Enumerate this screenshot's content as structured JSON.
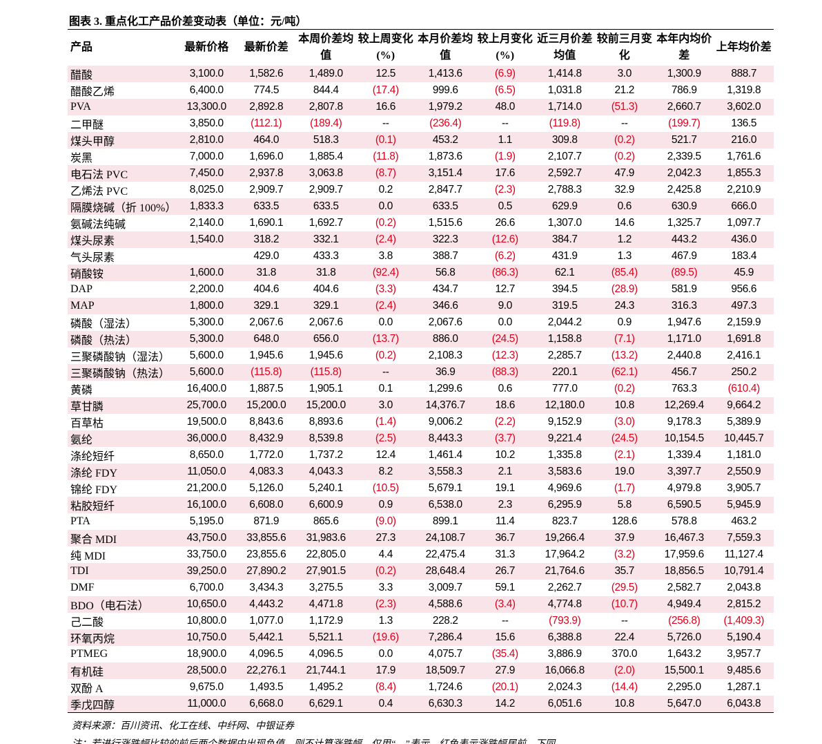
{
  "header": {
    "title": "图表 3. 重点化工产品价差变动表（单位：元/吨）"
  },
  "table": {
    "columns": [
      "产品",
      "最新价格",
      "最新价差",
      "本周价差均值",
      "较上周变化(%)",
      "本月价差均值",
      "较上月变化(%)",
      "近三月价差均值",
      "较前三月变化",
      "本年内均价差",
      "上年均价差"
    ],
    "rows": [
      [
        "醋酸",
        "3,100.0",
        "1,582.6",
        "1,489.0",
        "12.5",
        "1,413.6",
        "(6.9)",
        "1,414.8",
        "3.0",
        "1,300.9",
        "888.7"
      ],
      [
        "醋酸乙烯",
        "6,400.0",
        "774.5",
        "844.4",
        "(17.4)",
        "999.6",
        "(6.5)",
        "1,031.8",
        "21.2",
        "786.9",
        "1,319.8"
      ],
      [
        "PVA",
        "13,300.0",
        "2,892.8",
        "2,807.8",
        "16.6",
        "1,979.2",
        "48.0",
        "1,714.0",
        "(51.3)",
        "2,660.7",
        "3,602.0"
      ],
      [
        "二甲醚",
        "3,850.0",
        "(112.1)",
        "(189.4)",
        "--",
        "(236.4)",
        "--",
        "(119.8)",
        "--",
        "(199.7)",
        "136.5"
      ],
      [
        "煤头甲醇",
        "2,810.0",
        "464.0",
        "518.3",
        "(0.1)",
        "453.2",
        "1.1",
        "309.8",
        "(0.2)",
        "521.7",
        "216.0"
      ],
      [
        "炭黑",
        "7,000.0",
        "1,696.0",
        "1,885.4",
        "(11.8)",
        "1,873.6",
        "(1.9)",
        "2,107.7",
        "(0.2)",
        "2,339.5",
        "1,761.6"
      ],
      [
        "电石法 PVC",
        "7,450.0",
        "2,937.8",
        "3,063.8",
        "(8.7)",
        "3,151.4",
        "17.6",
        "2,592.7",
        "47.9",
        "2,042.3",
        "1,855.3"
      ],
      [
        "乙烯法 PVC",
        "8,025.0",
        "2,909.7",
        "2,909.7",
        "0.2",
        "2,847.7",
        "(2.3)",
        "2,788.3",
        "32.9",
        "2,425.8",
        "2,210.9"
      ],
      [
        "隔膜烧碱（折 100%）",
        "1,833.3",
        "633.5",
        "633.5",
        "0.0",
        "633.5",
        "0.5",
        "629.9",
        "0.6",
        "630.9",
        "666.0"
      ],
      [
        "氨碱法纯碱",
        "2,140.0",
        "1,690.1",
        "1,692.7",
        "(0.2)",
        "1,515.6",
        "26.6",
        "1,307.0",
        "14.6",
        "1,325.7",
        "1,097.7"
      ],
      [
        "煤头尿素",
        "1,540.0",
        "318.2",
        "332.1",
        "(2.4)",
        "322.3",
        "(12.6)",
        "384.7",
        "1.2",
        "443.2",
        "436.0"
      ],
      [
        "气头尿素",
        null,
        "429.0",
        "433.3",
        "3.8",
        "388.7",
        "(6.2)",
        "431.9",
        "1.3",
        "467.9",
        "183.4"
      ],
      [
        "硝酸铵",
        "1,600.0",
        "31.8",
        "31.8",
        "(92.4)",
        "56.8",
        "(86.3)",
        "62.1",
        "(85.4)",
        "(89.5)",
        "45.9"
      ],
      [
        "DAP",
        "2,200.0",
        "404.6",
        "404.6",
        "(3.3)",
        "434.7",
        "12.7",
        "394.5",
        "(28.9)",
        "581.9",
        "956.6"
      ],
      [
        "MAP",
        "1,800.0",
        "329.1",
        "329.1",
        "(2.4)",
        "346.6",
        "9.0",
        "319.5",
        "24.3",
        "316.3",
        "497.3"
      ],
      [
        "磷酸（湿法）",
        "5,300.0",
        "2,067.6",
        "2,067.6",
        "0.0",
        "2,067.6",
        "0.0",
        "2,044.2",
        "0.9",
        "1,947.6",
        "2,159.9"
      ],
      [
        "磷酸（热法）",
        "5,300.0",
        "648.0",
        "656.0",
        "(13.7)",
        "886.0",
        "(24.5)",
        "1,158.8",
        "(7.1)",
        "1,171.0",
        "1,691.8"
      ],
      [
        "三聚磷酸钠（湿法）",
        "5,600.0",
        "1,945.6",
        "1,945.6",
        "(0.2)",
        "2,108.3",
        "(12.3)",
        "2,285.7",
        "(13.2)",
        "2,440.8",
        "2,416.1"
      ],
      [
        "三聚磷酸钠（热法）",
        "5,600.0",
        "(115.8)",
        "(115.8)",
        "--",
        "36.9",
        "(88.3)",
        "220.1",
        "(62.1)",
        "456.7",
        "250.2"
      ],
      [
        "黄磷",
        "16,400.0",
        "1,887.5",
        "1,905.1",
        "0.1",
        "1,299.6",
        "0.6",
        "777.0",
        "(0.2)",
        "763.3",
        "(610.4)"
      ],
      [
        "草甘膦",
        "25,700.0",
        "15,200.0",
        "15,200.0",
        "3.0",
        "14,376.7",
        "18.6",
        "12,180.0",
        "10.8",
        "12,269.4",
        "9,664.2"
      ],
      [
        "百草枯",
        "19,500.0",
        "8,843.6",
        "8,893.6",
        "(1.4)",
        "9,006.2",
        "(2.2)",
        "9,152.9",
        "(3.0)",
        "9,178.3",
        "5,389.9"
      ],
      [
        "氨纶",
        "36,000.0",
        "8,432.9",
        "8,539.8",
        "(2.5)",
        "8,443.3",
        "(3.7)",
        "9,221.4",
        "(24.5)",
        "10,154.5",
        "10,445.7"
      ],
      [
        "涤纶短纤",
        "8,650.0",
        "1,772.0",
        "1,737.2",
        "12.4",
        "1,461.4",
        "10.2",
        "1,335.8",
        "(2.1)",
        "1,339.4",
        "1,181.0"
      ],
      [
        "涤纶 FDY",
        "11,050.0",
        "4,083.3",
        "4,043.3",
        "8.2",
        "3,558.3",
        "2.1",
        "3,583.6",
        "19.0",
        "3,397.7",
        "2,550.9"
      ],
      [
        "锦纶 FDY",
        "21,200.0",
        "5,126.0",
        "5,240.1",
        "(10.5)",
        "5,679.1",
        "19.1",
        "4,969.6",
        "(1.7)",
        "4,979.8",
        "3,905.7"
      ],
      [
        "粘胶短纤",
        "16,100.0",
        "6,608.0",
        "6,600.9",
        "0.9",
        "6,538.0",
        "2.3",
        "6,295.9",
        "5.8",
        "6,590.5",
        "5,945.9"
      ],
      [
        "PTA",
        "5,195.0",
        "871.9",
        "865.6",
        "(9.0)",
        "899.1",
        "11.4",
        "823.7",
        "128.6",
        "578.8",
        "463.2"
      ],
      [
        "聚合 MDI",
        "43,750.0",
        "33,855.6",
        "31,983.6",
        "27.3",
        "24,108.7",
        "36.7",
        "19,266.4",
        "37.9",
        "16,467.3",
        "7,559.3"
      ],
      [
        "纯 MDI",
        "33,750.0",
        "23,855.6",
        "22,805.0",
        "4.4",
        "22,475.4",
        "31.3",
        "17,964.2",
        "(3.2)",
        "17,959.6",
        "11,127.4"
      ],
      [
        "TDI",
        "39,250.0",
        "27,890.2",
        "27,901.5",
        "(0.2)",
        "28,648.4",
        "26.7",
        "21,764.6",
        "35.7",
        "18,856.5",
        "10,791.4"
      ],
      [
        "DMF",
        "6,700.0",
        "3,434.3",
        "3,275.5",
        "3.3",
        "3,009.7",
        "59.1",
        "2,262.7",
        "(29.5)",
        "2,582.7",
        "2,043.8"
      ],
      [
        "BDO（电石法）",
        "10,650.0",
        "4,443.2",
        "4,471.8",
        "(2.3)",
        "4,588.6",
        "(3.4)",
        "4,774.8",
        "(10.7)",
        "4,949.4",
        "2,815.2"
      ],
      [
        "己二酸",
        "10,800.0",
        "1,077.0",
        "1,172.9",
        "1.3",
        "228.2",
        "--",
        "(793.9)",
        "--",
        "(256.8)",
        "(1,409.3)"
      ],
      [
        "环氧丙烷",
        "10,750.0",
        "5,442.1",
        "5,521.1",
        "(19.6)",
        "7,286.4",
        "15.6",
        "6,388.8",
        "22.4",
        "5,726.0",
        "5,190.4"
      ],
      [
        "PTMEG",
        "18,900.0",
        "4,096.5",
        "4,096.5",
        "0.0",
        "4,075.7",
        "(35.4)",
        "3,886.9",
        "370.0",
        "1,643.2",
        "3,957.7"
      ],
      [
        "有机硅",
        "28,500.0",
        "22,276.1",
        "21,744.1",
        "17.9",
        "18,509.7",
        "27.9",
        "16,066.8",
        "(2.0)",
        "15,500.1",
        "9,485.6"
      ],
      [
        "双酚 A",
        "9,675.0",
        "1,493.5",
        "1,495.2",
        "(8.4)",
        "1,724.6",
        "(20.1)",
        "2,024.3",
        "(14.4)",
        "2,295.0",
        "1,287.1"
      ],
      [
        "季戊四醇",
        "11,000.0",
        "6,668.0",
        "6,629.1",
        "0.4",
        "6,630.3",
        "14.2",
        "6,051.6",
        "10.8",
        "5,647.0",
        "6,043.8"
      ]
    ]
  },
  "footer": {
    "source": "资料来源：百川资讯、化工在线、中纤网、中银证券",
    "note": "注：若进行涨跌幅比较的前后两个数据中出现负值，则不计算涨跌幅，仅用“—”表示，红色表示涨跌幅居前，下同"
  }
}
